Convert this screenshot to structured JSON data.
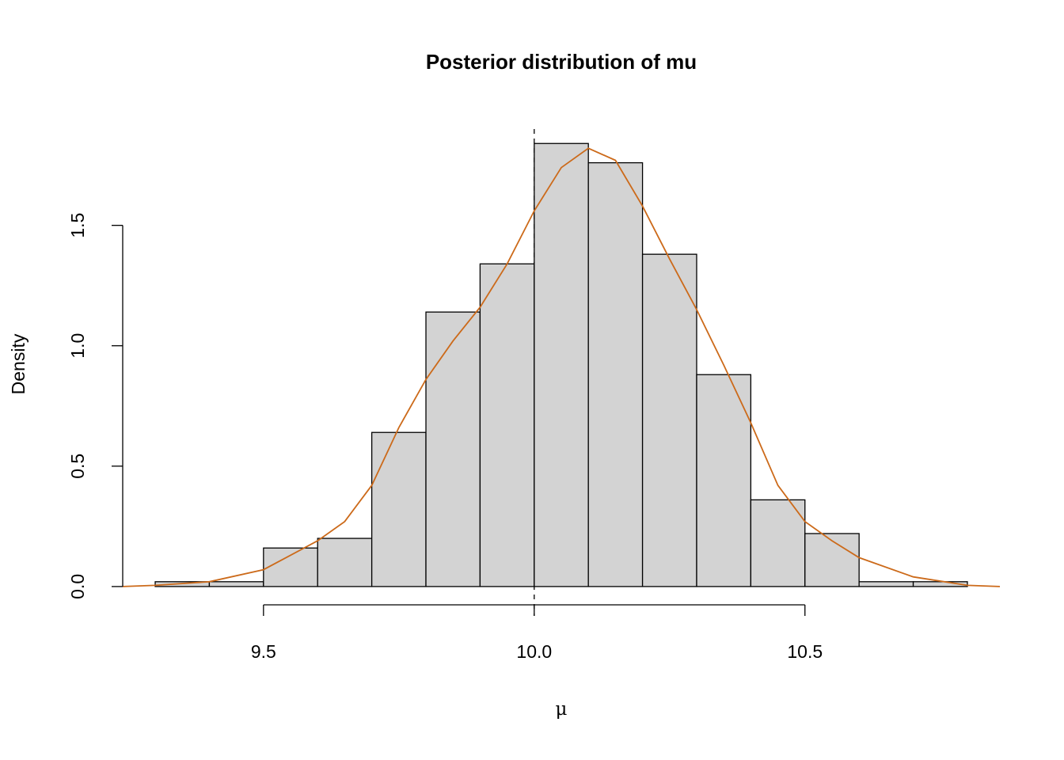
{
  "chart_data": {
    "type": "histogram",
    "title": "Posterior distribution of mu",
    "xlabel": "μ",
    "ylabel": "Density",
    "bins": [
      9.3,
      9.4,
      9.5,
      9.6,
      9.7,
      9.8,
      9.9,
      10.0,
      10.1,
      10.2,
      10.3,
      10.4,
      10.5,
      10.6,
      10.7,
      10.8
    ],
    "values": [
      0.02,
      0.02,
      0.16,
      0.2,
      0.64,
      1.14,
      1.34,
      1.84,
      1.76,
      1.38,
      0.88,
      0.36,
      0.22,
      0.02,
      0.02
    ],
    "color": "#d3d3d3",
    "density": {
      "color": "#cc6a1a",
      "x": [
        9.24,
        9.3,
        9.4,
        9.5,
        9.6,
        9.65,
        9.7,
        9.75,
        9.8,
        9.85,
        9.9,
        9.95,
        10.0,
        10.05,
        10.1,
        10.15,
        10.2,
        10.25,
        10.3,
        10.35,
        10.4,
        10.45,
        10.5,
        10.55,
        10.6,
        10.7,
        10.8,
        10.86
      ],
      "values": [
        0.0,
        0.005,
        0.02,
        0.07,
        0.19,
        0.27,
        0.42,
        0.66,
        0.86,
        1.02,
        1.16,
        1.34,
        1.56,
        1.74,
        1.82,
        1.77,
        1.58,
        1.36,
        1.15,
        0.92,
        0.68,
        0.42,
        0.27,
        0.19,
        0.12,
        0.04,
        0.005,
        0.0
      ]
    },
    "vline": 10.0,
    "xlim": [
      9.24,
      10.86
    ],
    "ylim": [
      -0.076,
      1.9
    ],
    "xticks": [
      9.5,
      {
        "value": 10.0,
        "label": "10.0"
      },
      10.5
    ],
    "yticks": [
      {
        "value": 0,
        "label": "0.0"
      },
      0.5,
      {
        "value": 1,
        "label": "1.0"
      },
      1.5
    ]
  }
}
